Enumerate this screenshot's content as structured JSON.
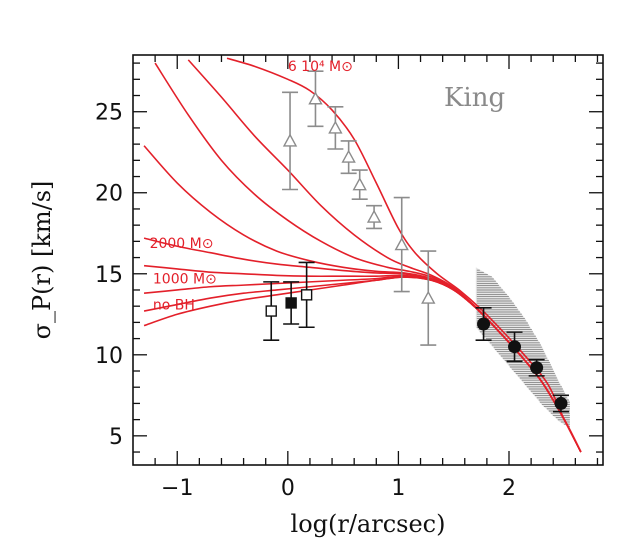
{
  "chart_data": {
    "type": "line",
    "title": "",
    "model_label": "King",
    "xlabel": "log(r/arcsec)",
    "ylabel": "σ_P(r)  [km/s]",
    "xlim": [
      -1.4,
      2.85
    ],
    "ylim": [
      3.2,
      28.5
    ],
    "x_ticks": [
      -1,
      0,
      1,
      2
    ],
    "x_tick_labels": [
      "−1",
      "0",
      "1",
      "2"
    ],
    "y_ticks": [
      5,
      10,
      15,
      20,
      25
    ],
    "y_tick_labels": [
      "5",
      "10",
      "15",
      "20",
      "25"
    ],
    "colors": {
      "models": "#e3202a",
      "triangles": "#8c8c8c",
      "squares": "#111111",
      "circles": "#111111",
      "band": "#888888"
    },
    "model_curves": [
      {
        "label": "no BH",
        "x": [
          -1.3,
          -1.0,
          -0.7,
          -0.4,
          -0.1,
          0.2,
          0.5,
          0.8,
          1.05,
          1.3,
          1.5,
          1.7,
          1.9,
          2.1,
          2.3,
          2.5,
          2.65
        ],
        "y": [
          11.8,
          12.5,
          13.0,
          13.4,
          13.7,
          14.0,
          14.3,
          14.6,
          14.8,
          14.6,
          14.0,
          12.9,
          11.5,
          10.0,
          8.3,
          6.0,
          4.0
        ]
      },
      {
        "label": "",
        "x": [
          -1.3,
          -1.0,
          -0.7,
          -0.4,
          -0.1,
          0.2,
          0.5,
          0.8,
          1.05,
          1.3,
          1.5,
          1.7,
          1.9,
          2.1,
          2.3,
          2.5,
          2.65
        ],
        "y": [
          12.7,
          13.1,
          13.5,
          13.8,
          14.0,
          14.2,
          14.4,
          14.6,
          14.8,
          14.6,
          14.0,
          12.9,
          11.5,
          10.0,
          8.3,
          6.0,
          4.0
        ]
      },
      {
        "label": "1000 M⊙",
        "x": [
          -1.3,
          -1.0,
          -0.7,
          -0.4,
          -0.1,
          0.2,
          0.5,
          0.8,
          1.05,
          1.3,
          1.5,
          1.7,
          1.9,
          2.1,
          2.3,
          2.5,
          2.65
        ],
        "y": [
          13.8,
          14.0,
          14.2,
          14.3,
          14.4,
          14.5,
          14.6,
          14.7,
          14.85,
          14.6,
          14.0,
          12.9,
          11.5,
          10.0,
          8.3,
          6.0,
          4.0
        ]
      },
      {
        "label": "",
        "x": [
          -1.3,
          -1.0,
          -0.7,
          -0.4,
          -0.1,
          0.2,
          0.5,
          0.8,
          1.05,
          1.3,
          1.5,
          1.7,
          1.9,
          2.1,
          2.3,
          2.5,
          2.65
        ],
        "y": [
          15.5,
          15.3,
          15.1,
          15.0,
          14.9,
          14.85,
          14.85,
          14.85,
          14.9,
          14.6,
          14.0,
          12.9,
          11.5,
          10.0,
          8.3,
          6.0,
          4.0
        ]
      },
      {
        "label": "2000 M⊙",
        "x": [
          -1.3,
          -1.0,
          -0.7,
          -0.4,
          -0.1,
          0.2,
          0.5,
          0.8,
          1.05,
          1.3,
          1.5,
          1.7,
          1.9,
          2.1,
          2.3,
          2.5,
          2.65
        ],
        "y": [
          17.2,
          16.7,
          16.3,
          15.9,
          15.6,
          15.4,
          15.2,
          15.05,
          15.0,
          14.65,
          14.0,
          12.9,
          11.5,
          10.0,
          8.3,
          6.0,
          4.0
        ]
      },
      {
        "label": "",
        "x": [
          -1.3,
          -1.0,
          -0.7,
          -0.4,
          -0.1,
          0.2,
          0.5,
          0.8,
          1.05,
          1.3,
          1.5,
          1.7,
          1.9,
          2.1,
          2.3,
          2.5,
          2.65
        ],
        "y": [
          22.9,
          20.6,
          18.8,
          17.4,
          16.4,
          15.8,
          15.4,
          15.15,
          15.05,
          14.7,
          14.05,
          12.9,
          11.5,
          10.0,
          8.3,
          6.0,
          4.0
        ]
      },
      {
        "label": "",
        "x": [
          -1.2,
          -0.9,
          -0.6,
          -0.3,
          0.0,
          0.3,
          0.6,
          0.9,
          1.1,
          1.3,
          1.5,
          1.7,
          1.9,
          2.1,
          2.3,
          2.5,
          2.65
        ],
        "y": [
          28.0,
          24.8,
          22.0,
          19.9,
          18.3,
          17.0,
          16.0,
          15.4,
          15.15,
          14.8,
          14.1,
          12.9,
          11.5,
          10.0,
          8.3,
          6.0,
          4.0
        ]
      },
      {
        "label": "",
        "x": [
          -0.9,
          -0.6,
          -0.3,
          0.0,
          0.3,
          0.6,
          0.9,
          1.1,
          1.3,
          1.5,
          1.7,
          1.9,
          2.1,
          2.3,
          2.5,
          2.65
        ],
        "y": [
          28.2,
          25.9,
          23.5,
          21.4,
          19.2,
          17.4,
          16.0,
          15.4,
          14.9,
          14.15,
          12.95,
          11.5,
          10.0,
          8.3,
          6.0,
          4.0
        ]
      },
      {
        "label": "6 10⁴ M⊙",
        "x": [
          -0.55,
          -0.3,
          0.0,
          0.2,
          0.4,
          0.6,
          0.8,
          1.0,
          1.15,
          1.35,
          1.55,
          1.75,
          1.95,
          2.15,
          2.35,
          2.5,
          2.65
        ],
        "y": [
          28.3,
          27.8,
          27.0,
          26.3,
          25.1,
          23.3,
          20.6,
          17.8,
          16.3,
          15.0,
          14.0,
          12.8,
          11.4,
          9.9,
          8.2,
          6.0,
          4.0
        ]
      }
    ],
    "band": {
      "x": [
        1.7,
        1.85,
        2.0,
        2.15,
        2.3,
        2.45,
        2.55
      ],
      "upper": [
        15.4,
        14.8,
        13.6,
        12.2,
        10.5,
        8.4,
        7.1
      ],
      "lower": [
        11.7,
        10.5,
        9.3,
        8.1,
        6.9,
        5.9,
        5.5
      ]
    },
    "triangles": [
      {
        "x": 0.02,
        "y": 23.2,
        "err": 3.0
      },
      {
        "x": 0.25,
        "y": 25.8,
        "err": 1.7
      },
      {
        "x": 0.43,
        "y": 24.0,
        "err": 1.3
      },
      {
        "x": 0.55,
        "y": 22.2,
        "err": 1.0
      },
      {
        "x": 0.65,
        "y": 20.5,
        "err": 0.9
      },
      {
        "x": 0.78,
        "y": 18.5,
        "err": 0.7
      },
      {
        "x": 1.03,
        "y": 16.8,
        "err": 2.9
      },
      {
        "x": 1.27,
        "y": 13.5,
        "err": 2.9
      }
    ],
    "squares": [
      {
        "x": -0.15,
        "y": 12.7,
        "err": 1.8,
        "filled": false
      },
      {
        "x": 0.03,
        "y": 13.2,
        "err": 1.3,
        "filled": true
      },
      {
        "x": 0.17,
        "y": 13.7,
        "err": 2.0,
        "filled": false
      }
    ],
    "circles": [
      {
        "x": 1.77,
        "y": 11.9,
        "err": 1.0
      },
      {
        "x": 2.05,
        "y": 10.5,
        "err": 0.9
      },
      {
        "x": 2.25,
        "y": 9.2,
        "err": 0.5
      },
      {
        "x": 2.47,
        "y": 7.0,
        "err": 0.5
      }
    ]
  }
}
